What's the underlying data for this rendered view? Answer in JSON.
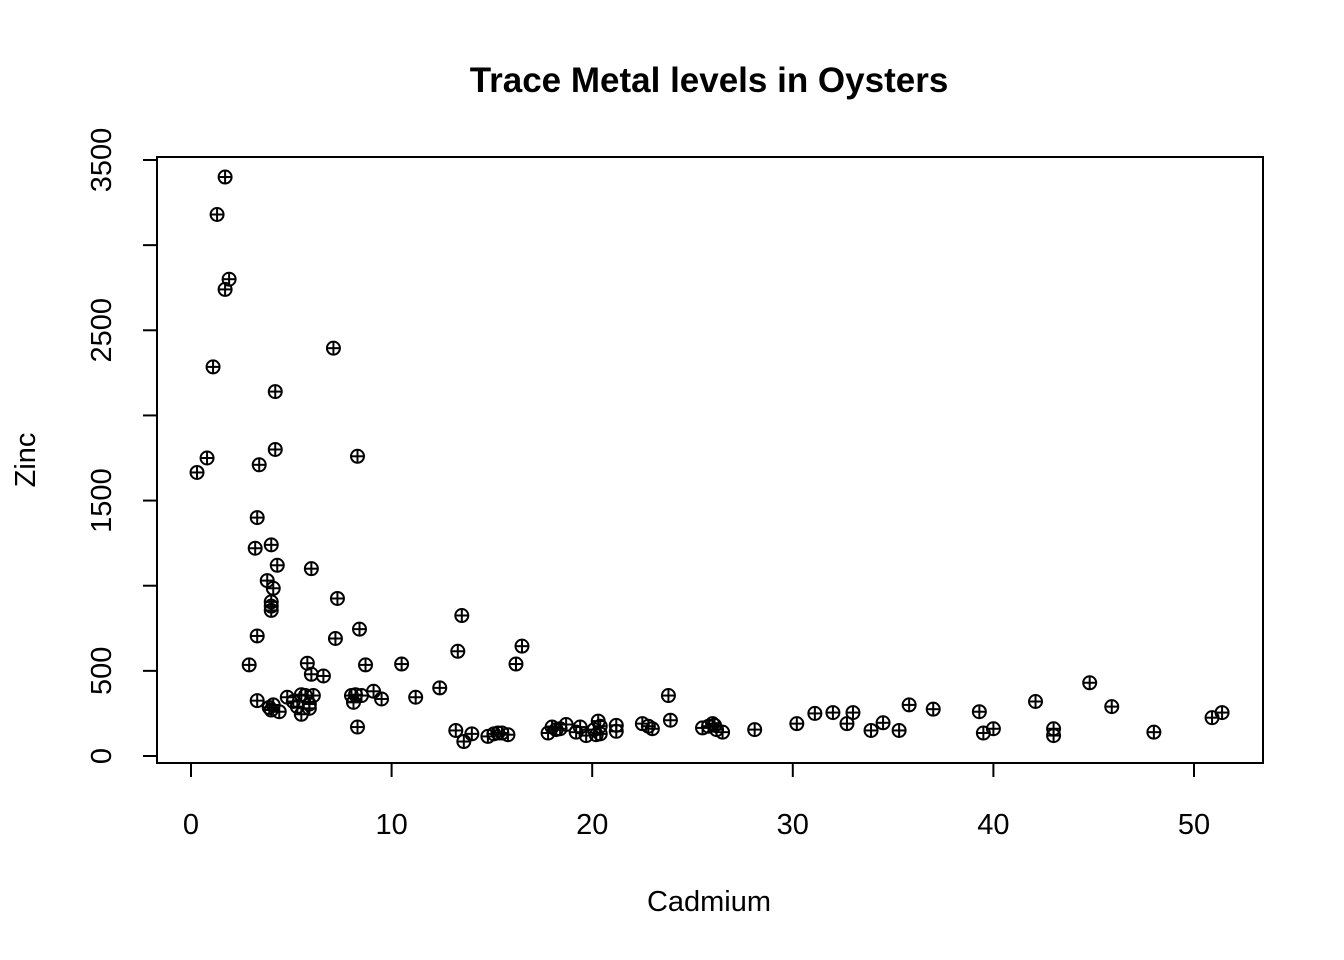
{
  "chart_data": {
    "type": "scatter",
    "title": "Trace Metal levels in Oysters",
    "xlabel": "Cadmium",
    "ylabel": "Zinc",
    "xlim": [
      0,
      52
    ],
    "ylim": [
      0,
      3500
    ],
    "xticks": [
      0,
      10,
      20,
      30,
      40,
      50
    ],
    "yticks": [
      0,
      500,
      1500,
      2500,
      3500
    ],
    "yticks_minor": [
      1000,
      2000,
      3000
    ],
    "grid": false,
    "legend": "none",
    "marker": "circle-plus",
    "color": "#000000",
    "points": [
      [
        0.3,
        1665
      ],
      [
        0.8,
        1750
      ],
      [
        1.1,
        2285
      ],
      [
        1.3,
        3180
      ],
      [
        1.7,
        3400
      ],
      [
        1.7,
        2740
      ],
      [
        1.9,
        2800
      ],
      [
        2.9,
        535
      ],
      [
        3.2,
        1220
      ],
      [
        3.3,
        1400
      ],
      [
        3.3,
        705
      ],
      [
        3.4,
        1710
      ],
      [
        3.3,
        325
      ],
      [
        3.8,
        1030
      ],
      [
        3.9,
        285
      ],
      [
        4.0,
        1240
      ],
      [
        4.0,
        905
      ],
      [
        4.0,
        880
      ],
      [
        4.0,
        855
      ],
      [
        4.1,
        985
      ],
      [
        4.1,
        300
      ],
      [
        4.0,
        270
      ],
      [
        4.2,
        2140
      ],
      [
        4.2,
        1800
      ],
      [
        4.3,
        1120
      ],
      [
        4.4,
        260
      ],
      [
        4.8,
        345
      ],
      [
        5.1,
        320
      ],
      [
        5.3,
        290
      ],
      [
        5.5,
        360
      ],
      [
        5.5,
        245
      ],
      [
        5.7,
        355
      ],
      [
        5.8,
        545
      ],
      [
        5.9,
        280
      ],
      [
        5.9,
        305
      ],
      [
        6.0,
        480
      ],
      [
        6.0,
        1100
      ],
      [
        6.1,
        355
      ],
      [
        6.6,
        470
      ],
      [
        7.1,
        2395
      ],
      [
        7.2,
        690
      ],
      [
        7.3,
        925
      ],
      [
        8.0,
        355
      ],
      [
        8.1,
        315
      ],
      [
        8.2,
        360
      ],
      [
        8.3,
        1760
      ],
      [
        8.3,
        170
      ],
      [
        8.4,
        745
      ],
      [
        8.5,
        355
      ],
      [
        8.7,
        535
      ],
      [
        9.1,
        380
      ],
      [
        9.5,
        335
      ],
      [
        10.5,
        540
      ],
      [
        11.2,
        345
      ],
      [
        12.4,
        400
      ],
      [
        13.2,
        150
      ],
      [
        13.3,
        615
      ],
      [
        13.5,
        825
      ],
      [
        13.6,
        85
      ],
      [
        14.0,
        130
      ],
      [
        14.8,
        115
      ],
      [
        15.1,
        130
      ],
      [
        15.3,
        135
      ],
      [
        15.5,
        135
      ],
      [
        15.8,
        125
      ],
      [
        16.2,
        540
      ],
      [
        16.5,
        645
      ],
      [
        17.8,
        135
      ],
      [
        18.0,
        170
      ],
      [
        18.2,
        155
      ],
      [
        18.4,
        160
      ],
      [
        18.7,
        185
      ],
      [
        19.2,
        140
      ],
      [
        19.4,
        170
      ],
      [
        19.7,
        120
      ],
      [
        20.1,
        155
      ],
      [
        20.2,
        125
      ],
      [
        20.3,
        205
      ],
      [
        20.4,
        175
      ],
      [
        20.4,
        130
      ],
      [
        21.2,
        180
      ],
      [
        21.2,
        145
      ],
      [
        22.5,
        190
      ],
      [
        22.8,
        175
      ],
      [
        23.0,
        160
      ],
      [
        23.8,
        355
      ],
      [
        23.9,
        210
      ],
      [
        25.5,
        165
      ],
      [
        25.8,
        175
      ],
      [
        26.0,
        190
      ],
      [
        26.1,
        180
      ],
      [
        26.2,
        155
      ],
      [
        26.5,
        140
      ],
      [
        28.1,
        155
      ],
      [
        30.2,
        190
      ],
      [
        31.1,
        250
      ],
      [
        32.0,
        255
      ],
      [
        32.7,
        190
      ],
      [
        33.0,
        255
      ],
      [
        33.9,
        150
      ],
      [
        34.5,
        195
      ],
      [
        35.3,
        150
      ],
      [
        35.8,
        300
      ],
      [
        37.0,
        275
      ],
      [
        39.3,
        260
      ],
      [
        39.5,
        135
      ],
      [
        40.0,
        160
      ],
      [
        42.1,
        320
      ],
      [
        43.0,
        160
      ],
      [
        43.0,
        120
      ],
      [
        44.8,
        430
      ],
      [
        45.9,
        290
      ],
      [
        48.0,
        140
      ],
      [
        50.9,
        225
      ],
      [
        51.4,
        255
      ]
    ]
  }
}
